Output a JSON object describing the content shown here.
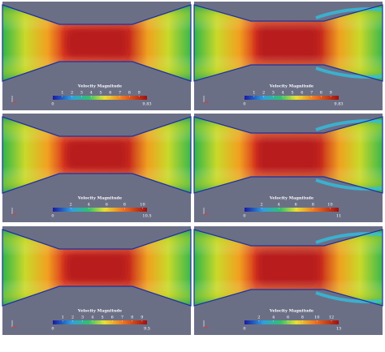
{
  "panels": [
    {
      "title": "Velocity Magnitude",
      "min": 0,
      "max": 9.83,
      "ticks": [
        1,
        2,
        3,
        4,
        5,
        6,
        7,
        8,
        9
      ]
    },
    {
      "title": "Velocity Magnitude",
      "min": 0,
      "max": 9.83,
      "ticks": [
        1,
        2,
        3,
        4,
        5,
        6,
        7,
        8,
        9
      ]
    },
    {
      "title": "Velocity Magnitude",
      "min": 0,
      "max": 10.5,
      "ticks": [
        2,
        4,
        6,
        8,
        10
      ]
    },
    {
      "title": "Velocity Magnitude",
      "min": 0,
      "max": 11,
      "ticks": [
        2,
        4,
        6,
        8,
        10
      ]
    },
    {
      "title": "Velocity Magnitude",
      "min": 0,
      "max": 9.5,
      "ticks": [
        1,
        2,
        3,
        4,
        5,
        6,
        7,
        8,
        9
      ]
    },
    {
      "title": "Velocity Magnitude",
      "min": 0,
      "max": 13,
      "ticks": [
        2,
        4,
        6,
        8,
        10,
        12
      ]
    }
  ]
}
